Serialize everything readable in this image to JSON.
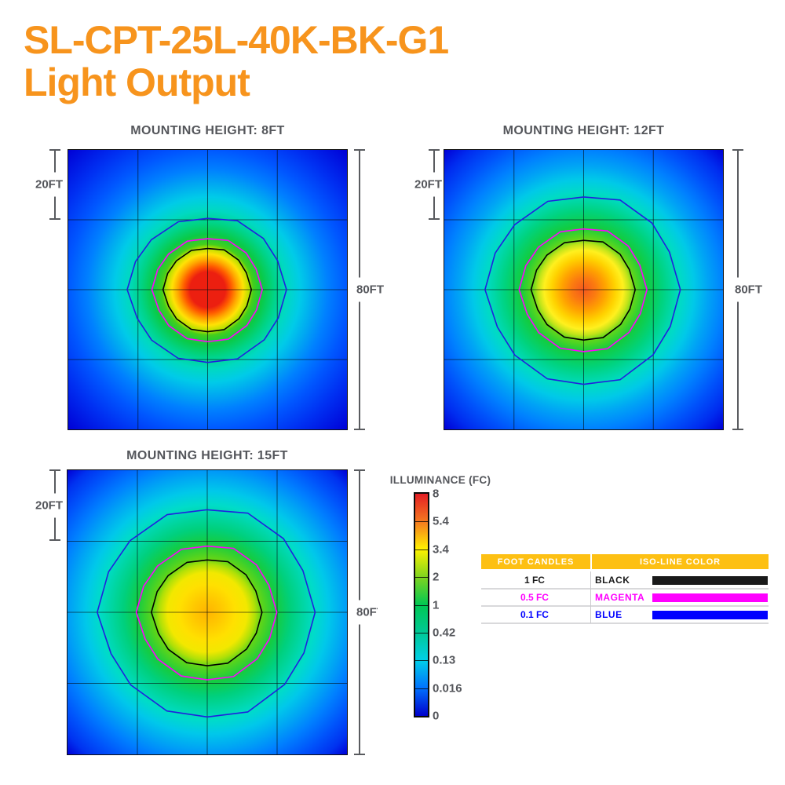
{
  "page": {
    "title_line1": "SL-CPT-25L-40K-BK-G1",
    "title_line2": "Light Output",
    "title_color": "#F7941D"
  },
  "chart_data": {
    "type": "heatmap",
    "title": "SL-CPT-25L-40K-BK-G1 Light Output",
    "axis": {
      "spacing_label": "20FT",
      "width_label": "80FT",
      "grid_spacing_ft": 20,
      "area_width_ft": 80,
      "area_height_ft": 80,
      "grid_divisions": 4
    },
    "plots": [
      {
        "mounting_height_ft": 8,
        "title": "MOUNTING HEIGHT: 8FT",
        "peak_illuminance_fc": 8,
        "gradient": [
          "#EC1F10 0%",
          "#EC1F10 9%",
          "#FF5A00 12%",
          "#FFA500 15%",
          "#FFE205 18%",
          "#B8E000 21%",
          "#46CE1B 23%",
          "#0ACA46 28%",
          "#00D488 34%",
          "#00D9C0 40%",
          "#00CBE8 47%",
          "#00A6F2 54%",
          "#0080FF 61%",
          "#0057FF 71%",
          "#0030F2 83%",
          "#0000D6 100%"
        ],
        "rings": [
          {
            "level": "0.1 FC",
            "color": "#2020DF",
            "rx": 0.283,
            "ry": 0.263
          },
          {
            "level": "0.5 FC",
            "color": "#FF00FF",
            "rx": 0.196,
            "ry": 0.188
          },
          {
            "level": "1 FC",
            "color": "#000000",
            "rx": 0.157,
            "ry": 0.152
          }
        ]
      },
      {
        "mounting_height_ft": 12,
        "title": "MOUNTING HEIGHT: 12FT",
        "peak_illuminance_fc": 5.4,
        "gradient": [
          "#F4581E 0%",
          "#FB7A10 6%",
          "#FFA300 11%",
          "#FFD300 16%",
          "#FFF01E 20%",
          "#C2E41A 23%",
          "#5ED61C 26%",
          "#12CC3F 32%",
          "#00D37E 40%",
          "#00DBC4 49%",
          "#00C9E8 56%",
          "#00A4F5 63%",
          "#0080FF 71%",
          "#0053FB 81%",
          "#002CEF 91%",
          "#0000D6 100%"
        ],
        "rings": [
          {
            "level": "0.1 FC",
            "color": "#2020DF",
            "rx": 0.347,
            "ry": 0.342
          },
          {
            "level": "0.5 FC",
            "color": "#FF00FF",
            "rx": 0.227,
            "ry": 0.224
          },
          {
            "level": "1 FC",
            "color": "#000000",
            "rx": 0.185,
            "ry": 0.182
          }
        ]
      },
      {
        "mounting_height_ft": 15,
        "title": "MOUNTING HEIGHT: 15FT",
        "peak_illuminance_fc": 3.4,
        "gradient": [
          "#FFB400 0%",
          "#FFC800 7%",
          "#FFE000 14%",
          "#F2E800 20%",
          "#AFE008 24%",
          "#62D517 27%",
          "#14CC42 35%",
          "#00D07C 42%",
          "#00DCC8 54%",
          "#00C8EA 61%",
          "#00A2F5 69%",
          "#007FFF 76%",
          "#0054FB 85%",
          "#0032F0 93%",
          "#0000D6 100%"
        ],
        "rings": [
          {
            "level": "0.1 FC",
            "color": "#2020DF",
            "rx": 0.386,
            "ry": 0.372
          },
          {
            "level": "0.5 FC",
            "color": "#FF00FF",
            "rx": 0.249,
            "ry": 0.24
          },
          {
            "level": "1 FC",
            "color": "#000000",
            "rx": 0.196,
            "ry": 0.19
          }
        ]
      }
    ],
    "colorbar": {
      "title": "ILLUMINANCE (FC)",
      "tick_labels": [
        "8",
        "5.4",
        "3.4",
        "2",
        "1",
        "0.42",
        "0.13",
        "0.016",
        "0"
      ],
      "colors": [
        "#E31E24",
        "#F47920",
        "#FFF200",
        "#7FD41E",
        "#00C853",
        "#00C896",
        "#00CFE8",
        "#0071FE",
        "#0000CC"
      ]
    },
    "legend_headers": {
      "foot_candles": "FOOT CANDLES",
      "iso_line_color": "ISO-LINE COLOR"
    },
    "iso_lines": [
      {
        "value": "1 FC",
        "name": "BLACK",
        "color": "#1A1A1A"
      },
      {
        "value": "0.5 FC",
        "name": "MAGENTA",
        "color": "#FF00FF"
      },
      {
        "value": "0.1 FC",
        "name": "BLUE",
        "color": "#0000FF"
      }
    ]
  }
}
